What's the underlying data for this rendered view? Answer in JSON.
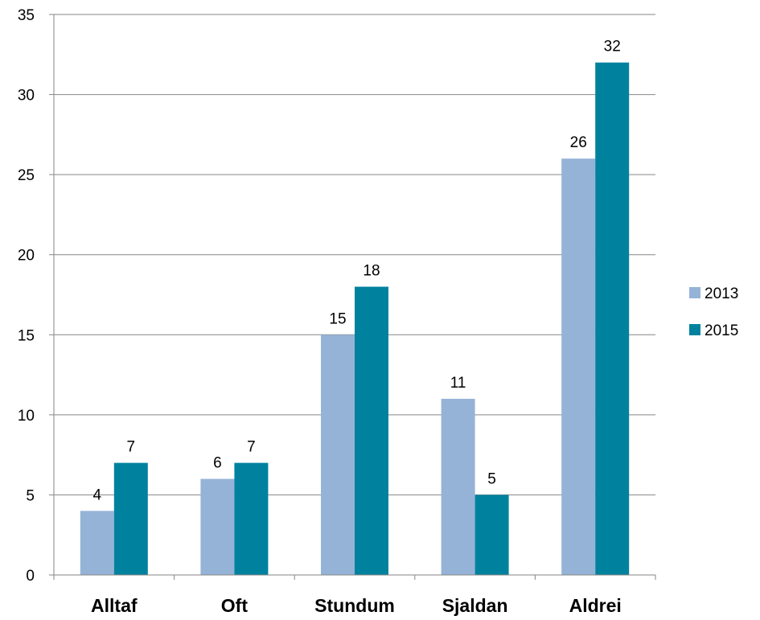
{
  "chart_data": {
    "type": "bar",
    "categories": [
      "Alltaf",
      "Oft",
      "Stundum",
      "Sjaldan",
      "Aldrei"
    ],
    "series": [
      {
        "name": "2013",
        "values": [
          4,
          6,
          15,
          11,
          26
        ],
        "color": "#95b3d7"
      },
      {
        "name": "2015",
        "values": [
          7,
          7,
          18,
          5,
          32
        ],
        "color": "#00829f"
      }
    ],
    "ylim": [
      0,
      35
    ],
    "yticks": [
      0,
      5,
      10,
      15,
      20,
      25,
      30,
      35
    ],
    "grid": true,
    "legend_position": "right",
    "data_labels": true
  }
}
